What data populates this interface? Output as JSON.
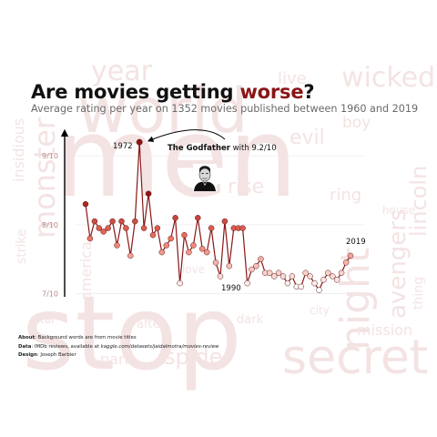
{
  "header": {
    "title_prefix": "Are movies getting ",
    "title_accent": "worse",
    "title_suffix": "?",
    "subtitle": "Average rating per year on 1352 movies published between 1960 and 2019"
  },
  "background_words": [
    "world",
    "men",
    "stop",
    "secret",
    "night",
    "wicked",
    "year",
    "monster",
    "insidious",
    "lincoln",
    "avengers",
    "evil",
    "boy",
    "ring",
    "rise",
    "mission",
    "spider",
    "park",
    "strike",
    "live",
    "america",
    "thing",
    "after",
    "dark",
    "love",
    "city",
    "house",
    "star"
  ],
  "annotations": {
    "peak_year": "1972",
    "godfather_name": "The Godfather",
    "godfather_with": " with 9.2/10",
    "low_year": "1990",
    "end_year": "2019"
  },
  "footer": {
    "about_label": "About",
    "about_text": ": Background words are from movie titles",
    "data_label": "Data",
    "data_text_1": ": IMDb reviews, available at ",
    "data_url": "kaggle.com/datasets/jaidalmotra/movies-review",
    "design_label": "Design",
    "design_text": ": Joseph Barbier"
  },
  "colors": {
    "accent": "#8a1515",
    "line": "#8a1515",
    "point_high": "#a31313",
    "point_low": "#ffffff",
    "background_words": "#f4e3e3"
  },
  "chart_data": {
    "type": "line",
    "title": "Are movies getting worse?",
    "subtitle": "Average rating per year on 1352 movies published between 1960 and 2019",
    "xlabel": "",
    "ylabel": "",
    "xlim": [
      1960,
      2019
    ],
    "ylim": [
      6.9,
      9.4
    ],
    "yticks": [
      {
        "value": 7,
        "label": "7/10"
      },
      {
        "value": 8,
        "label": "8/10"
      },
      {
        "value": 9,
        "label": "9/10"
      }
    ],
    "grid": "horizontal",
    "series": [
      {
        "x": [
          1960,
          1961,
          1962,
          1963,
          1964,
          1965,
          1966,
          1967,
          1968,
          1969,
          1970,
          1971,
          1972,
          1973,
          1974,
          1975,
          1976,
          1977,
          1978,
          1979,
          1980,
          1981,
          1982,
          1983,
          1984,
          1985,
          1986,
          1987,
          1988,
          1989,
          1990,
          1991,
          1992,
          1993,
          1994,
          1995,
          1996,
          1997,
          1998,
          1999,
          2000,
          2001,
          2002,
          2003,
          2004,
          2005,
          2006,
          2007,
          2008,
          2009,
          2010,
          2011,
          2012,
          2013,
          2014,
          2015,
          2016,
          2017,
          2018,
          2019
        ],
        "values": [
          8.3,
          7.8,
          8.05,
          7.95,
          7.9,
          7.95,
          8.05,
          7.7,
          8.05,
          7.95,
          7.55,
          8.05,
          9.2,
          7.95,
          8.45,
          7.85,
          7.95,
          7.6,
          7.7,
          7.8,
          8.1,
          7.15,
          7.85,
          7.6,
          7.7,
          8.1,
          7.65,
          7.6,
          7.95,
          7.45,
          7.25,
          8.05,
          7.4,
          7.95,
          7.95,
          7.95,
          7.15,
          7.35,
          7.4,
          7.5,
          7.3,
          7.3,
          7.25,
          7.3,
          7.25,
          7.15,
          7.25,
          7.1,
          7.1,
          7.3,
          7.25,
          7.15,
          7.05,
          7.2,
          7.3,
          7.25,
          7.2,
          7.3,
          7.45,
          7.55
        ]
      }
    ]
  }
}
